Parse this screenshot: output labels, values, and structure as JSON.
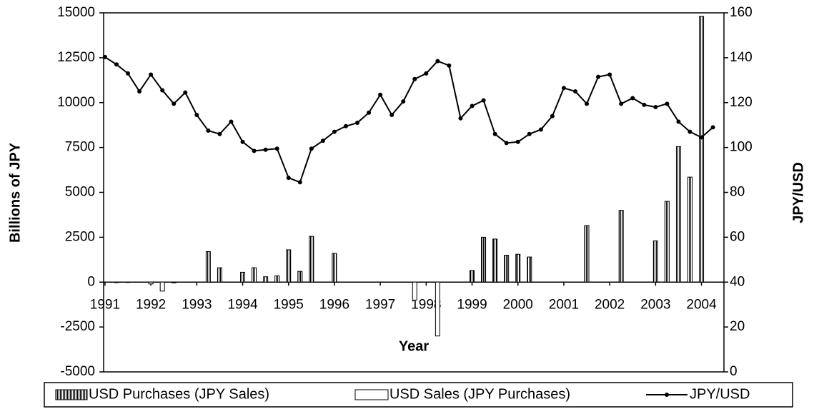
{
  "chart_data": {
    "type": "combo",
    "x_label": "Year",
    "y_label": "Billions of JPY",
    "y2_label": "JPY/USD",
    "x": [
      1991,
      1991.25,
      1991.5,
      1991.75,
      1992,
      1992.25,
      1992.5,
      1992.75,
      1993,
      1993.25,
      1993.5,
      1993.75,
      1994,
      1994.25,
      1994.5,
      1994.75,
      1995,
      1995.25,
      1995.5,
      1995.75,
      1996,
      1996.25,
      1996.5,
      1996.75,
      1997,
      1997.25,
      1997.5,
      1997.75,
      1998,
      1998.25,
      1998.5,
      1998.75,
      1999,
      1999.25,
      1999.5,
      1999.75,
      2000,
      2000.25,
      2000.5,
      2000.75,
      2001,
      2001.25,
      2001.5,
      2001.75,
      2002,
      2002.25,
      2002.5,
      2002.75,
      2003,
      2003.25,
      2003.5,
      2003.75,
      2004,
      2004.25
    ],
    "xlim": [
      1990.97,
      2004.49
    ],
    "xticks": [
      1991,
      1992,
      1993,
      1994,
      1995,
      1996,
      1997,
      1998,
      1999,
      2000,
      2001,
      2002,
      2003,
      2004
    ],
    "ylim": [
      -5000,
      15000
    ],
    "yticks": [
      -5000,
      -2500,
      0,
      2500,
      5000,
      7500,
      10000,
      12500,
      15000
    ],
    "y2lim": [
      0,
      160
    ],
    "y2ticks": [
      0,
      20,
      40,
      60,
      80,
      100,
      120,
      140,
      160
    ],
    "legend": "bottom",
    "series": [
      {
        "name": "USD Purchases (JPY Sales)",
        "type": "bar",
        "color": "#000000",
        "values": [
          null,
          null,
          null,
          null,
          null,
          null,
          null,
          null,
          null,
          1700,
          800,
          null,
          550,
          800,
          300,
          350,
          1800,
          600,
          2550,
          null,
          1600,
          null,
          null,
          null,
          null,
          null,
          null,
          null,
          null,
          null,
          null,
          null,
          650,
          2500,
          2400,
          1500,
          1550,
          1400,
          null,
          null,
          null,
          null,
          3150,
          null,
          null,
          4000,
          null,
          null,
          2300,
          4500,
          7550,
          5850,
          14800,
          null
        ]
      },
      {
        "name": "USD Sales (JPY Purchases)",
        "type": "bar",
        "color": "#ffffff",
        "values": [
          null,
          -30,
          -20,
          null,
          -100,
          -500,
          -40,
          null,
          null,
          null,
          null,
          null,
          null,
          null,
          null,
          null,
          null,
          null,
          null,
          null,
          null,
          null,
          null,
          null,
          null,
          null,
          null,
          -1000,
          null,
          -3000,
          null,
          null,
          null,
          null,
          null,
          null,
          null,
          null,
          null,
          null,
          null,
          null,
          null,
          null,
          null,
          null,
          null,
          null,
          null,
          null,
          null,
          null,
          null,
          null
        ]
      },
      {
        "name": "JPY/USD",
        "type": "line",
        "axis": "y2",
        "color": "#000000",
        "values": [
          140.3,
          137,
          133,
          125,
          132.5,
          125.5,
          119.5,
          124.5,
          114.5,
          107.5,
          106,
          111.5,
          102.5,
          98.5,
          99,
          99.5,
          86.5,
          84.5,
          99.5,
          103,
          107,
          109.5,
          111,
          115.5,
          123.5,
          114.5,
          120.5,
          130.5,
          133,
          138.5,
          136.5,
          113,
          118.5,
          121,
          106,
          102,
          102.5,
          106,
          108,
          114,
          126.5,
          125,
          119.5,
          131.5,
          132.5,
          119.5,
          122,
          119,
          118,
          119.5,
          111.5,
          107,
          104.5,
          109
        ]
      }
    ]
  }
}
